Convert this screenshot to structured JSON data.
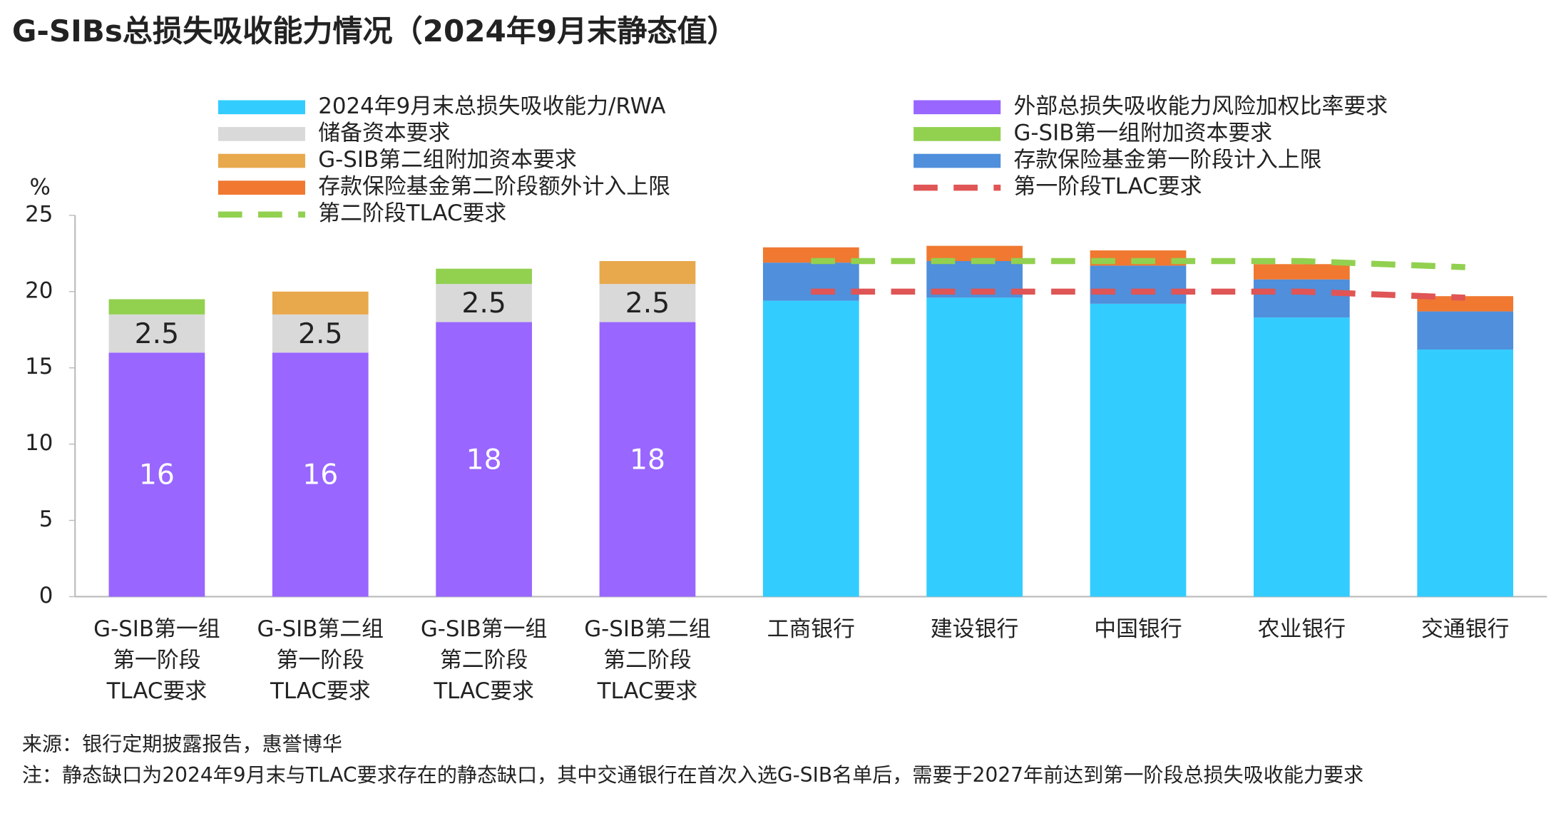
{
  "chart_data": {
    "type": "stacked-bar",
    "title": "G-SIBs总损失吸收能力情况（2024年9月末静态值）",
    "y_label": "%",
    "categories": [
      "G-SIB第一组\n第一阶段\nTLAC要求",
      "G-SIB第二组\n第一阶段\nTLAC要求",
      "G-SIB第一组\n第二阶段\nTLAC要求",
      "G-SIB第二组\n第二阶段\nTLAC要求",
      "工商银行",
      "建设银行",
      "中国银行",
      "农业银行",
      "交通银行"
    ],
    "series": [
      {
        "name": "2024年9月末总损失吸收能力/RWA",
        "color": "#33ccff",
        "values": [
          null,
          null,
          null,
          null,
          19.4,
          19.6,
          19.2,
          18.3,
          16.2
        ]
      },
      {
        "name": "外部总损失吸收能力风险加权比率要求",
        "color": "#9966ff",
        "values": [
          16,
          16,
          18,
          18,
          null,
          null,
          null,
          null,
          null
        ],
        "data_labels": true,
        "label_color": "#ffffff"
      },
      {
        "name": "储备资本要求",
        "color": "#d9d9d9",
        "values": [
          2.5,
          2.5,
          2.5,
          2.5,
          null,
          null,
          null,
          null,
          null
        ],
        "data_labels": true,
        "label_color": "#222222"
      },
      {
        "name": "G-SIB第一组附加资本要求",
        "color": "#92d050",
        "values": [
          1,
          null,
          1,
          null,
          null,
          null,
          null,
          null,
          null
        ]
      },
      {
        "name": "G-SIB第二组附加资本要求",
        "color": "#e8a84c",
        "values": [
          null,
          1.5,
          null,
          1.5,
          null,
          null,
          null,
          null,
          null
        ]
      },
      {
        "name": "存款保险基金第一阶段计入上限",
        "color": "#4f8fdb",
        "values": [
          null,
          null,
          null,
          null,
          2.5,
          2.4,
          2.5,
          2.5,
          2.5
        ]
      },
      {
        "name": "存款保险基金第二阶段额外计入上限",
        "color": "#f07830",
        "values": [
          null,
          null,
          null,
          null,
          1.0,
          1.0,
          1.0,
          1.0,
          1.0
        ]
      },
      {
        "name": "第一阶段TLAC要求",
        "color": "#e05555",
        "type": "line",
        "dashed": true,
        "values": [
          null,
          null,
          null,
          null,
          20,
          20,
          20,
          20,
          19.6
        ]
      },
      {
        "name": "第二阶段TLAC要求",
        "color": "#92d050",
        "type": "line",
        "dashed": true,
        "values": [
          null,
          null,
          null,
          null,
          22,
          22,
          22,
          22,
          21.6
        ]
      }
    ],
    "ylim": [
      0,
      25
    ],
    "yticks": [
      0,
      5,
      10,
      15,
      20,
      25
    ],
    "grid": false,
    "source": "来源：银行定期披露报告，惠誉博华",
    "note": "注：静态缺口为2024年9月末与TLAC要求存在的静态缺口，其中交通银行在首次入选G-SIB名单后，需要于2027年前达到第一阶段总损失吸收能力要求"
  }
}
